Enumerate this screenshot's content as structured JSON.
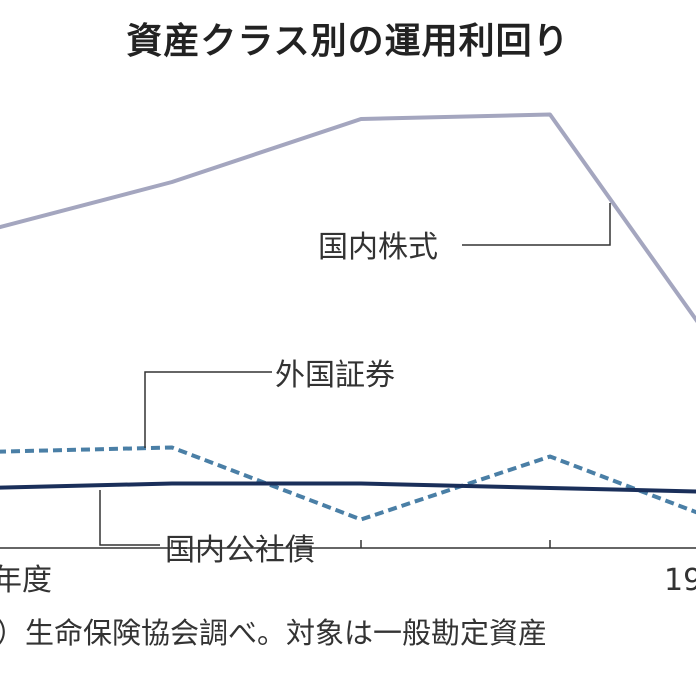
{
  "chart_data": {
    "type": "line",
    "title": "資産クラス別の運用利回り",
    "categories": [
      "年度",
      "",
      "",
      "",
      "19"
    ],
    "series": [
      {
        "name": "国内株式",
        "values": [
          7.3,
          8.4,
          9.8,
          9.9,
          4.0
        ],
        "color": "#a4a6bf",
        "style": "solid"
      },
      {
        "name": "外国証券",
        "values": [
          2.4,
          2.5,
          0.9,
          2.3,
          0.7
        ],
        "color": "#4a7fa6",
        "style": "dashed"
      },
      {
        "name": "国内公社債",
        "values": [
          1.6,
          1.7,
          1.7,
          1.6,
          1.5
        ],
        "color": "#1a2f5a",
        "style": "solid"
      }
    ],
    "ylim": [
      0,
      10
    ],
    "grid": false,
    "legend": "inline labels with leader lines",
    "source": "）生命保険協会調べ。対象は一般勘定資産"
  }
}
